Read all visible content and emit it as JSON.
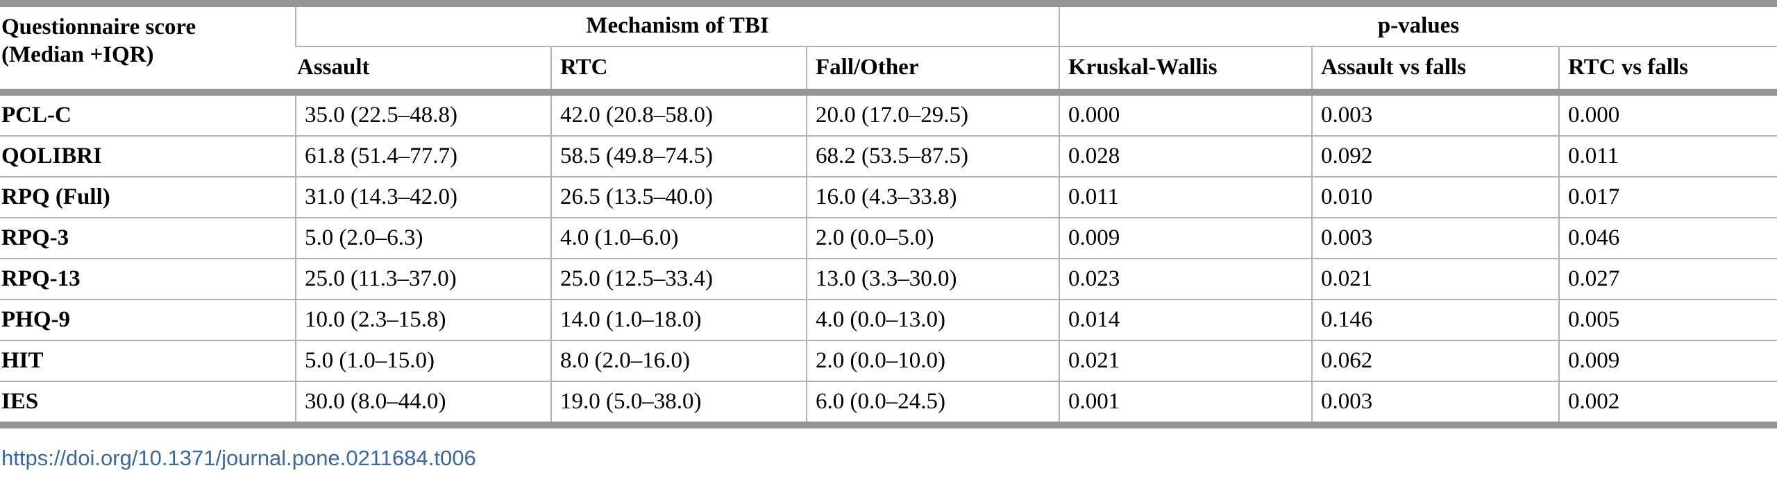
{
  "table": {
    "stub_header": [
      "Questionnaire score",
      "(Median +IQR)"
    ],
    "group_headers": {
      "mechanism": "Mechanism of TBI",
      "pvalues": "p-values"
    },
    "columns": [
      "Assault",
      "RTC",
      "Fall/Other",
      "Kruskal-Wallis",
      "Assault vs falls",
      "RTC vs falls"
    ],
    "rows": [
      {
        "label": "PCL-C",
        "cells": [
          "35.0 (22.5–48.8)",
          "42.0 (20.8–58.0)",
          "20.0 (17.0–29.5)",
          "0.000",
          "0.003",
          "0.000"
        ]
      },
      {
        "label": "QOLIBRI",
        "cells": [
          "61.8 (51.4–77.7)",
          "58.5 (49.8–74.5)",
          "68.2 (53.5–87.5)",
          "0.028",
          "0.092",
          "0.011"
        ]
      },
      {
        "label": "RPQ (Full)",
        "cells": [
          "31.0 (14.3–42.0)",
          "26.5 (13.5–40.0)",
          "16.0 (4.3–33.8)",
          "0.011",
          "0.010",
          "0.017"
        ]
      },
      {
        "label": "RPQ-3",
        "cells": [
          "5.0 (2.0–6.3)",
          "4.0 (1.0–6.0)",
          "2.0 (0.0–5.0)",
          "0.009",
          "0.003",
          "0.046"
        ]
      },
      {
        "label": "RPQ-13",
        "cells": [
          "25.0 (11.3–37.0)",
          "25.0 (12.5–33.4)",
          "13.0 (3.3–30.0)",
          "0.023",
          "0.021",
          "0.027"
        ]
      },
      {
        "label": "PHQ-9",
        "cells": [
          "10.0 (2.3–15.8)",
          "14.0 (1.0–18.0)",
          "4.0 (0.0–13.0)",
          "0.014",
          "0.146",
          "0.005"
        ]
      },
      {
        "label": "HIT",
        "cells": [
          "5.0 (1.0–15.0)",
          "8.0 (2.0–16.0)",
          "2.0 (0.0–10.0)",
          "0.021",
          "0.062",
          "0.009"
        ]
      },
      {
        "label": "IES",
        "cells": [
          "30.0 (8.0–44.0)",
          "19.0 (5.0–38.0)",
          "6.0 (0.0–24.5)",
          "0.001",
          "0.003",
          "0.002"
        ]
      }
    ]
  },
  "doi": "https://doi.org/10.1371/journal.pone.0211684.t006",
  "colors": {
    "rule": "#939598",
    "grid": "#b3b3b3",
    "link": "#3a67a6"
  }
}
